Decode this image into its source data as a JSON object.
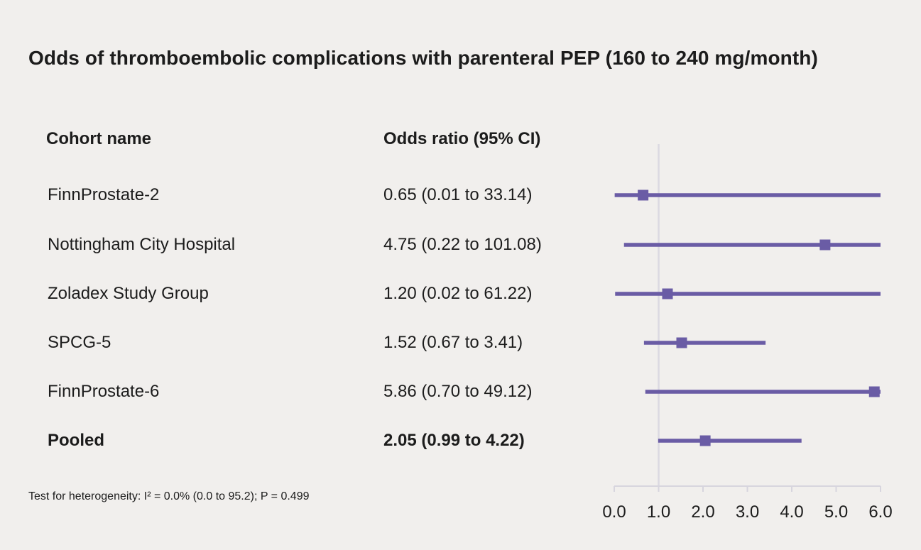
{
  "title": "Odds of thromboembolic complications with parenteral PEP (160 to 240 mg/month)",
  "columns": {
    "cohort": "Cohort name",
    "odds": "Odds ratio (95% CI)"
  },
  "footnote": "Test for heterogeneity: I² = 0.0% (0.0 to 95.2); P = 0.499",
  "chart_data": {
    "type": "forest",
    "title": "Odds of thromboembolic complications with parenteral PEP (160 to 240 mg/month)",
    "xlim": [
      0,
      6
    ],
    "ref_line": 1.0,
    "xticks": [
      0,
      1,
      2,
      3,
      4,
      5,
      6
    ],
    "xtick_labels": [
      "0.0",
      "1.0",
      "2.0",
      "3.0",
      "4.0",
      "5.0",
      "6.0"
    ],
    "legend": "none",
    "grid": "off",
    "rows": [
      {
        "name": "FinnProstate-2",
        "or_text": "0.65 (0.01 to 33.14)",
        "or": 0.65,
        "lo": 0.01,
        "hi": 33.14,
        "bold": false
      },
      {
        "name": "Nottingham City Hospital",
        "or_text": "4.75 (0.22 to 101.08)",
        "or": 4.75,
        "lo": 0.22,
        "hi": 101.08,
        "bold": false
      },
      {
        "name": "Zoladex Study Group",
        "or_text": "1.20 (0.02 to 61.22)",
        "or": 1.2,
        "lo": 0.02,
        "hi": 61.22,
        "bold": false
      },
      {
        "name": "SPCG-5",
        "or_text": "1.52 (0.67 to 3.41)",
        "or": 1.52,
        "lo": 0.67,
        "hi": 3.41,
        "bold": false
      },
      {
        "name": "FinnProstate-6",
        "or_text": "5.86 (0.70 to 49.12)",
        "or": 5.86,
        "lo": 0.7,
        "hi": 49.12,
        "bold": false
      },
      {
        "name": "Pooled",
        "or_text": "2.05 (0.99 to 4.22)",
        "or": 2.05,
        "lo": 0.99,
        "hi": 4.22,
        "bold": true
      }
    ],
    "colors": {
      "marker": "#6a5ca5",
      "line": "#6a5ca5",
      "axis": "#d7d5de",
      "ref_line": "#dbd9e2",
      "text": "#1c1c1c",
      "background": "#f1efed"
    }
  }
}
